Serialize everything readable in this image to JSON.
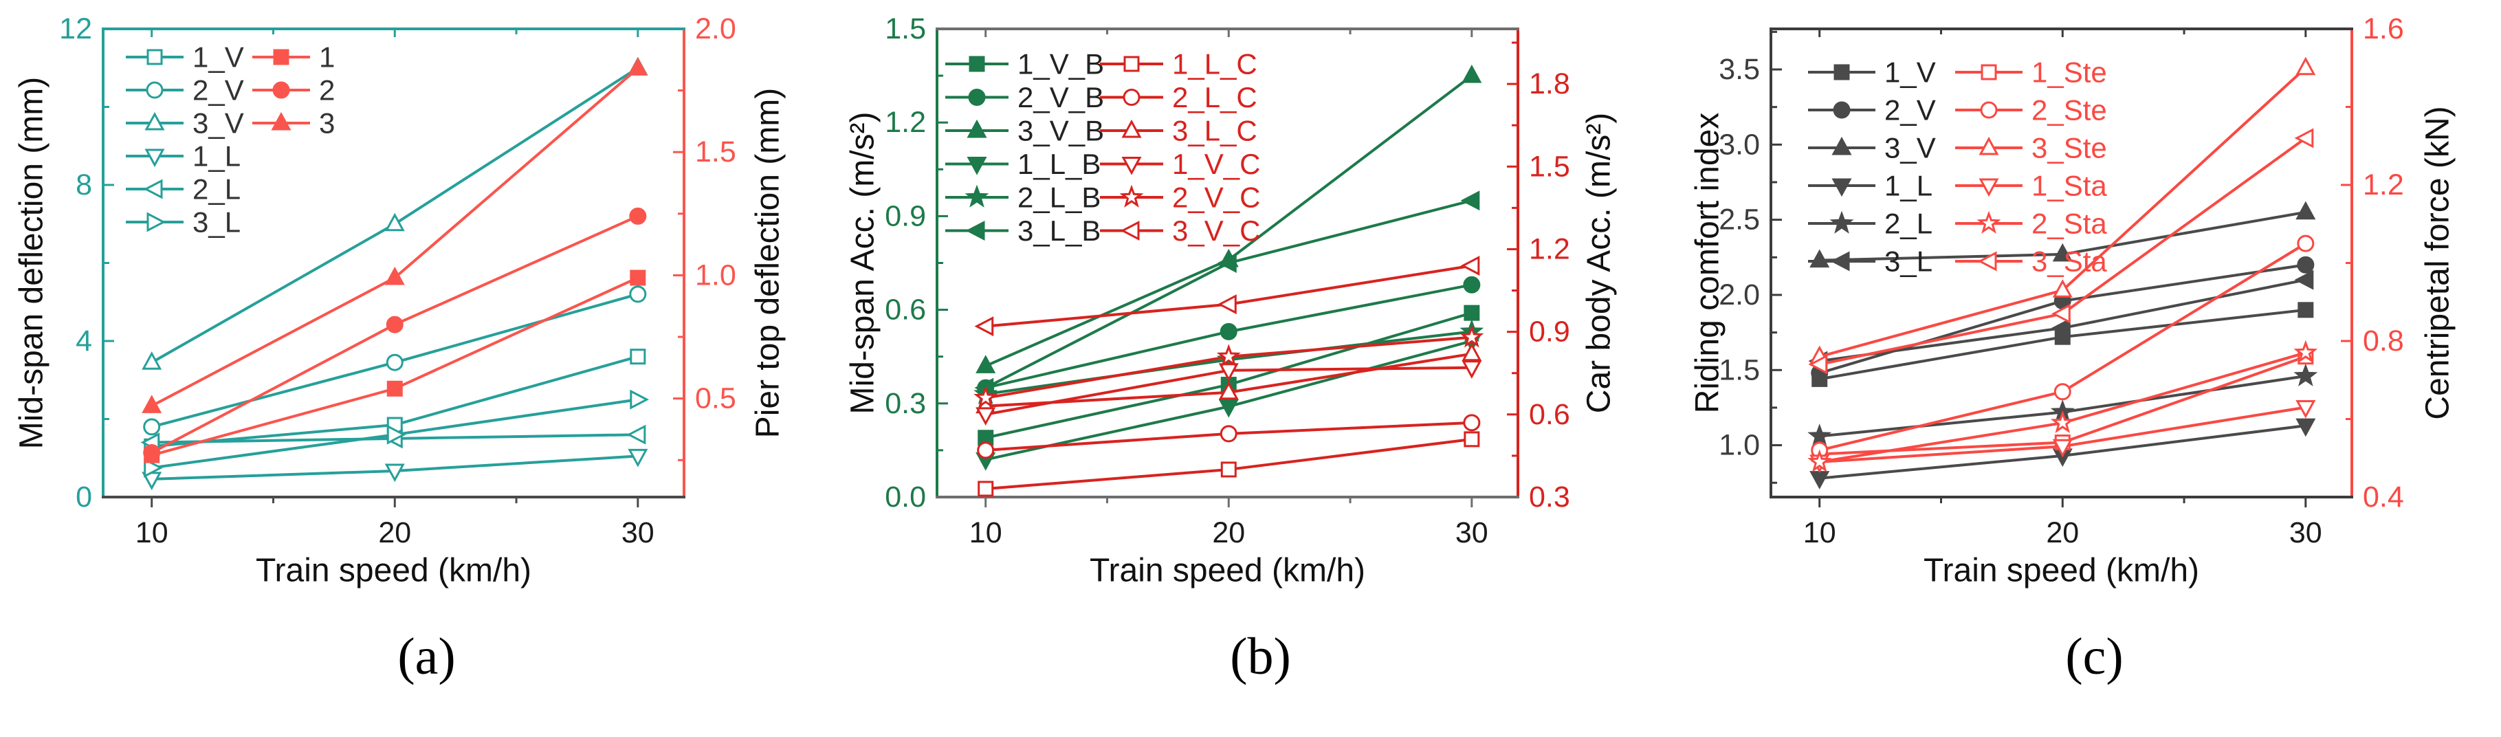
{
  "figure": {
    "background": "#ffffff"
  },
  "chart_data": [
    {
      "id": "a",
      "type": "line",
      "caption": "(a)",
      "x": [
        10,
        20,
        30
      ],
      "x_axis": {
        "label": "Train speed (km/h)",
        "ticks": [
          10,
          20,
          30
        ],
        "range": [
          8,
          31.9
        ],
        "decimals": 0
      },
      "left_axis": {
        "label": "Mid-span deflection (mm)",
        "ticks": [
          0,
          4,
          8,
          12
        ],
        "range": [
          0,
          12
        ],
        "decimals": 0,
        "color": "#26A09A"
      },
      "right_axis": {
        "label": "Pier top deflection (mm)",
        "ticks": [
          0.5,
          1.0,
          1.5,
          2.0
        ],
        "range": [
          0.1,
          2.0
        ],
        "decimals": 1,
        "color": "#FA554D"
      },
      "top_color": "#26A09A",
      "bottom_color": "#4A4A4A",
      "grid": false,
      "series": [
        {
          "name": "1_V",
          "axis": "left",
          "marker": "square",
          "fill": "open",
          "color": "#26A09A",
          "values": [
            1.3,
            1.85,
            3.6
          ]
        },
        {
          "name": "2_V",
          "axis": "left",
          "marker": "circle",
          "fill": "open",
          "color": "#26A09A",
          "values": [
            1.8,
            3.45,
            5.2
          ]
        },
        {
          "name": "3_V",
          "axis": "left",
          "marker": "triangle-up",
          "fill": "open",
          "color": "#26A09A",
          "values": [
            3.45,
            7.0,
            11.0
          ]
        },
        {
          "name": "1_L",
          "axis": "left",
          "marker": "triangle-down",
          "fill": "open",
          "color": "#26A09A",
          "values": [
            0.46,
            0.67,
            1.05
          ]
        },
        {
          "name": "2_L",
          "axis": "left",
          "marker": "triangle-left",
          "fill": "open",
          "color": "#26A09A",
          "values": [
            1.4,
            1.5,
            1.6
          ]
        },
        {
          "name": "3_L",
          "axis": "left",
          "marker": "triangle-right",
          "fill": "open",
          "color": "#26A09A",
          "values": [
            0.75,
            1.6,
            2.5
          ]
        },
        {
          "name": "1",
          "axis": "right",
          "marker": "square",
          "fill": "filled",
          "color": "#FA554D",
          "values": [
            0.27,
            0.54,
            0.99
          ]
        },
        {
          "name": "2",
          "axis": "right",
          "marker": "circle",
          "fill": "filled",
          "color": "#FA554D",
          "values": [
            0.28,
            0.8,
            1.24
          ]
        },
        {
          "name": "3",
          "axis": "right",
          "marker": "triangle-up",
          "fill": "filled",
          "color": "#FA554D",
          "values": [
            0.47,
            0.99,
            1.84
          ]
        }
      ],
      "legend": {
        "columns": [
          {
            "label_color": "#333333",
            "entries": [
              "1_V",
              "2_V",
              "3_V",
              "1_L",
              "2_L",
              "3_L"
            ]
          },
          {
            "label_color": "#333333",
            "entries": [
              "1",
              "2",
              "3"
            ]
          }
        ]
      }
    },
    {
      "id": "b",
      "type": "line",
      "caption": "(b)",
      "x": [
        10,
        20,
        30
      ],
      "x_axis": {
        "label": "Train speed (km/h)",
        "ticks": [
          10,
          20,
          30
        ],
        "range": [
          8,
          31.9
        ],
        "decimals": 0
      },
      "left_axis": {
        "label": "Mid-span Acc. (m/s²)",
        "ticks": [
          0.0,
          0.3,
          0.6,
          0.9,
          1.2,
          1.5
        ],
        "range": [
          0,
          1.5
        ],
        "decimals": 1,
        "color": "#1D7A4A"
      },
      "right_axis": {
        "label": "Car body Acc. (m/s²)",
        "ticks": [
          0.3,
          0.6,
          0.9,
          1.2,
          1.5,
          1.8
        ],
        "range": [
          0.3,
          2.0
        ],
        "decimals": 1,
        "color": "#D8231F"
      },
      "top_color": "#6E6E6E",
      "bottom_color": "#6E6E6E",
      "grid": false,
      "series": [
        {
          "name": "1_V_B",
          "axis": "left",
          "marker": "square",
          "fill": "filled",
          "color": "#1D7A4A",
          "values": [
            0.19,
            0.36,
            0.59
          ]
        },
        {
          "name": "2_V_B",
          "axis": "left",
          "marker": "circle",
          "fill": "filled",
          "color": "#1D7A4A",
          "values": [
            0.35,
            0.53,
            0.68
          ]
        },
        {
          "name": "3_V_B",
          "axis": "left",
          "marker": "triangle-up",
          "fill": "filled",
          "color": "#1D7A4A",
          "values": [
            0.42,
            0.76,
            1.35
          ]
        },
        {
          "name": "1_L_B",
          "axis": "left",
          "marker": "triangle-down",
          "fill": "filled",
          "color": "#1D7A4A",
          "values": [
            0.12,
            0.29,
            0.5
          ]
        },
        {
          "name": "2_L_B",
          "axis": "left",
          "marker": "star",
          "fill": "filled",
          "color": "#1D7A4A",
          "values": [
            0.33,
            0.44,
            0.53
          ]
        },
        {
          "name": "3_L_B",
          "axis": "left",
          "marker": "triangle-left",
          "fill": "filled",
          "color": "#1D7A4A",
          "values": [
            0.35,
            0.75,
            0.95
          ]
        },
        {
          "name": "1_L_C",
          "axis": "right",
          "marker": "square",
          "fill": "open",
          "color": "#D8231F",
          "values": [
            0.33,
            0.4,
            0.51
          ]
        },
        {
          "name": "2_L_C",
          "axis": "right",
          "marker": "circle",
          "fill": "open",
          "color": "#D8231F",
          "values": [
            0.47,
            0.53,
            0.57
          ]
        },
        {
          "name": "3_L_C",
          "axis": "right",
          "marker": "triangle-up",
          "fill": "open",
          "color": "#D8231F",
          "values": [
            0.63,
            0.68,
            0.82
          ]
        },
        {
          "name": "1_V_C",
          "axis": "right",
          "marker": "triangle-down",
          "fill": "open",
          "color": "#D8231F",
          "values": [
            0.6,
            0.76,
            0.77
          ]
        },
        {
          "name": "2_V_C",
          "axis": "right",
          "marker": "star",
          "fill": "open",
          "color": "#D8231F",
          "values": [
            0.66,
            0.81,
            0.88
          ]
        },
        {
          "name": "3_V_C",
          "axis": "right",
          "marker": "triangle-left",
          "fill": "open",
          "color": "#D8231F",
          "values": [
            0.92,
            1.0,
            1.14
          ]
        }
      ],
      "legend": {
        "columns": [
          {
            "label_color": "#222222",
            "entries": [
              "1_V_B",
              "2_V_B",
              "3_V_B",
              "1_L_B",
              "2_L_B",
              "3_L_B"
            ]
          },
          {
            "label_color": "#D8231F",
            "entries": [
              "1_L_C",
              "2_L_C",
              "3_L_C",
              "1_V_C",
              "2_V_C",
              "3_V_C"
            ]
          }
        ]
      }
    },
    {
      "id": "c",
      "type": "line",
      "caption": "(c)",
      "x": [
        10,
        20,
        30
      ],
      "x_axis": {
        "label": "Train speed (km/h)",
        "ticks": [
          10,
          20,
          30
        ],
        "range": [
          8,
          31.9
        ],
        "decimals": 0
      },
      "left_axis": {
        "label": "Riding comfort index",
        "ticks": [
          1.0,
          1.5,
          2.0,
          2.5,
          3.0,
          3.5
        ],
        "range": [
          0.655,
          3.77
        ],
        "decimals": 1,
        "color": "#3C3C3C"
      },
      "right_axis": {
        "label": "Centripetal force (kN)",
        "ticks": [
          0.4,
          0.8,
          1.2,
          1.6
        ],
        "range": [
          0.4,
          1.6
        ],
        "decimals": 1,
        "color": "#FA4943"
      },
      "top_color": "#3C3C3C",
      "bottom_color": "#3C3C3C",
      "grid": false,
      "series": [
        {
          "name": "1_V",
          "axis": "left",
          "marker": "square",
          "fill": "filled",
          "color": "#4A4A4A",
          "values": [
            1.44,
            1.72,
            1.9
          ]
        },
        {
          "name": "2_V",
          "axis": "left",
          "marker": "circle",
          "fill": "filled",
          "color": "#4A4A4A",
          "values": [
            1.48,
            1.96,
            2.2
          ]
        },
        {
          "name": "3_V",
          "axis": "left",
          "marker": "triangle-up",
          "fill": "filled",
          "color": "#4A4A4A",
          "values": [
            2.23,
            2.27,
            2.55
          ]
        },
        {
          "name": "1_L",
          "axis": "left",
          "marker": "triangle-down",
          "fill": "filled",
          "color": "#4A4A4A",
          "values": [
            0.78,
            0.93,
            1.13
          ]
        },
        {
          "name": "2_L",
          "axis": "left",
          "marker": "star",
          "fill": "filled",
          "color": "#4A4A4A",
          "values": [
            1.06,
            1.22,
            1.46
          ]
        },
        {
          "name": "3_L",
          "axis": "left",
          "marker": "triangle-left",
          "fill": "filled",
          "color": "#4A4A4A",
          "values": [
            1.56,
            1.78,
            2.1
          ]
        },
        {
          "name": "1_Ste",
          "axis": "right",
          "marker": "square",
          "fill": "open",
          "color": "#FA4943",
          "values": [
            0.51,
            0.54,
            0.76
          ]
        },
        {
          "name": "2_Ste",
          "axis": "right",
          "marker": "circle",
          "fill": "open",
          "color": "#FA4943",
          "values": [
            0.52,
            0.67,
            1.05
          ]
        },
        {
          "name": "3_Ste",
          "axis": "right",
          "marker": "triangle-up",
          "fill": "open",
          "color": "#FA4943",
          "values": [
            0.76,
            0.93,
            1.5
          ]
        },
        {
          "name": "1_Sta",
          "axis": "right",
          "marker": "triangle-down",
          "fill": "open",
          "color": "#FA4943",
          "values": [
            0.49,
            0.53,
            0.63
          ]
        },
        {
          "name": "2_Sta",
          "axis": "right",
          "marker": "star",
          "fill": "open",
          "color": "#FA4943",
          "values": [
            0.49,
            0.59,
            0.77
          ]
        },
        {
          "name": "3_Sta",
          "axis": "right",
          "marker": "triangle-left",
          "fill": "open",
          "color": "#FA4943",
          "values": [
            0.74,
            0.87,
            1.32
          ]
        }
      ],
      "legend": {
        "columns": [
          {
            "label_color": "#222222",
            "entries": [
              "1_V",
              "2_V",
              "3_V",
              "1_L",
              "2_L",
              "3_L"
            ]
          },
          {
            "label_color": "#FA4943",
            "entries": [
              "1_Ste",
              "2_Ste",
              "3_Ste",
              "1_Sta",
              "2_Sta",
              "3_Sta"
            ]
          }
        ]
      }
    }
  ]
}
